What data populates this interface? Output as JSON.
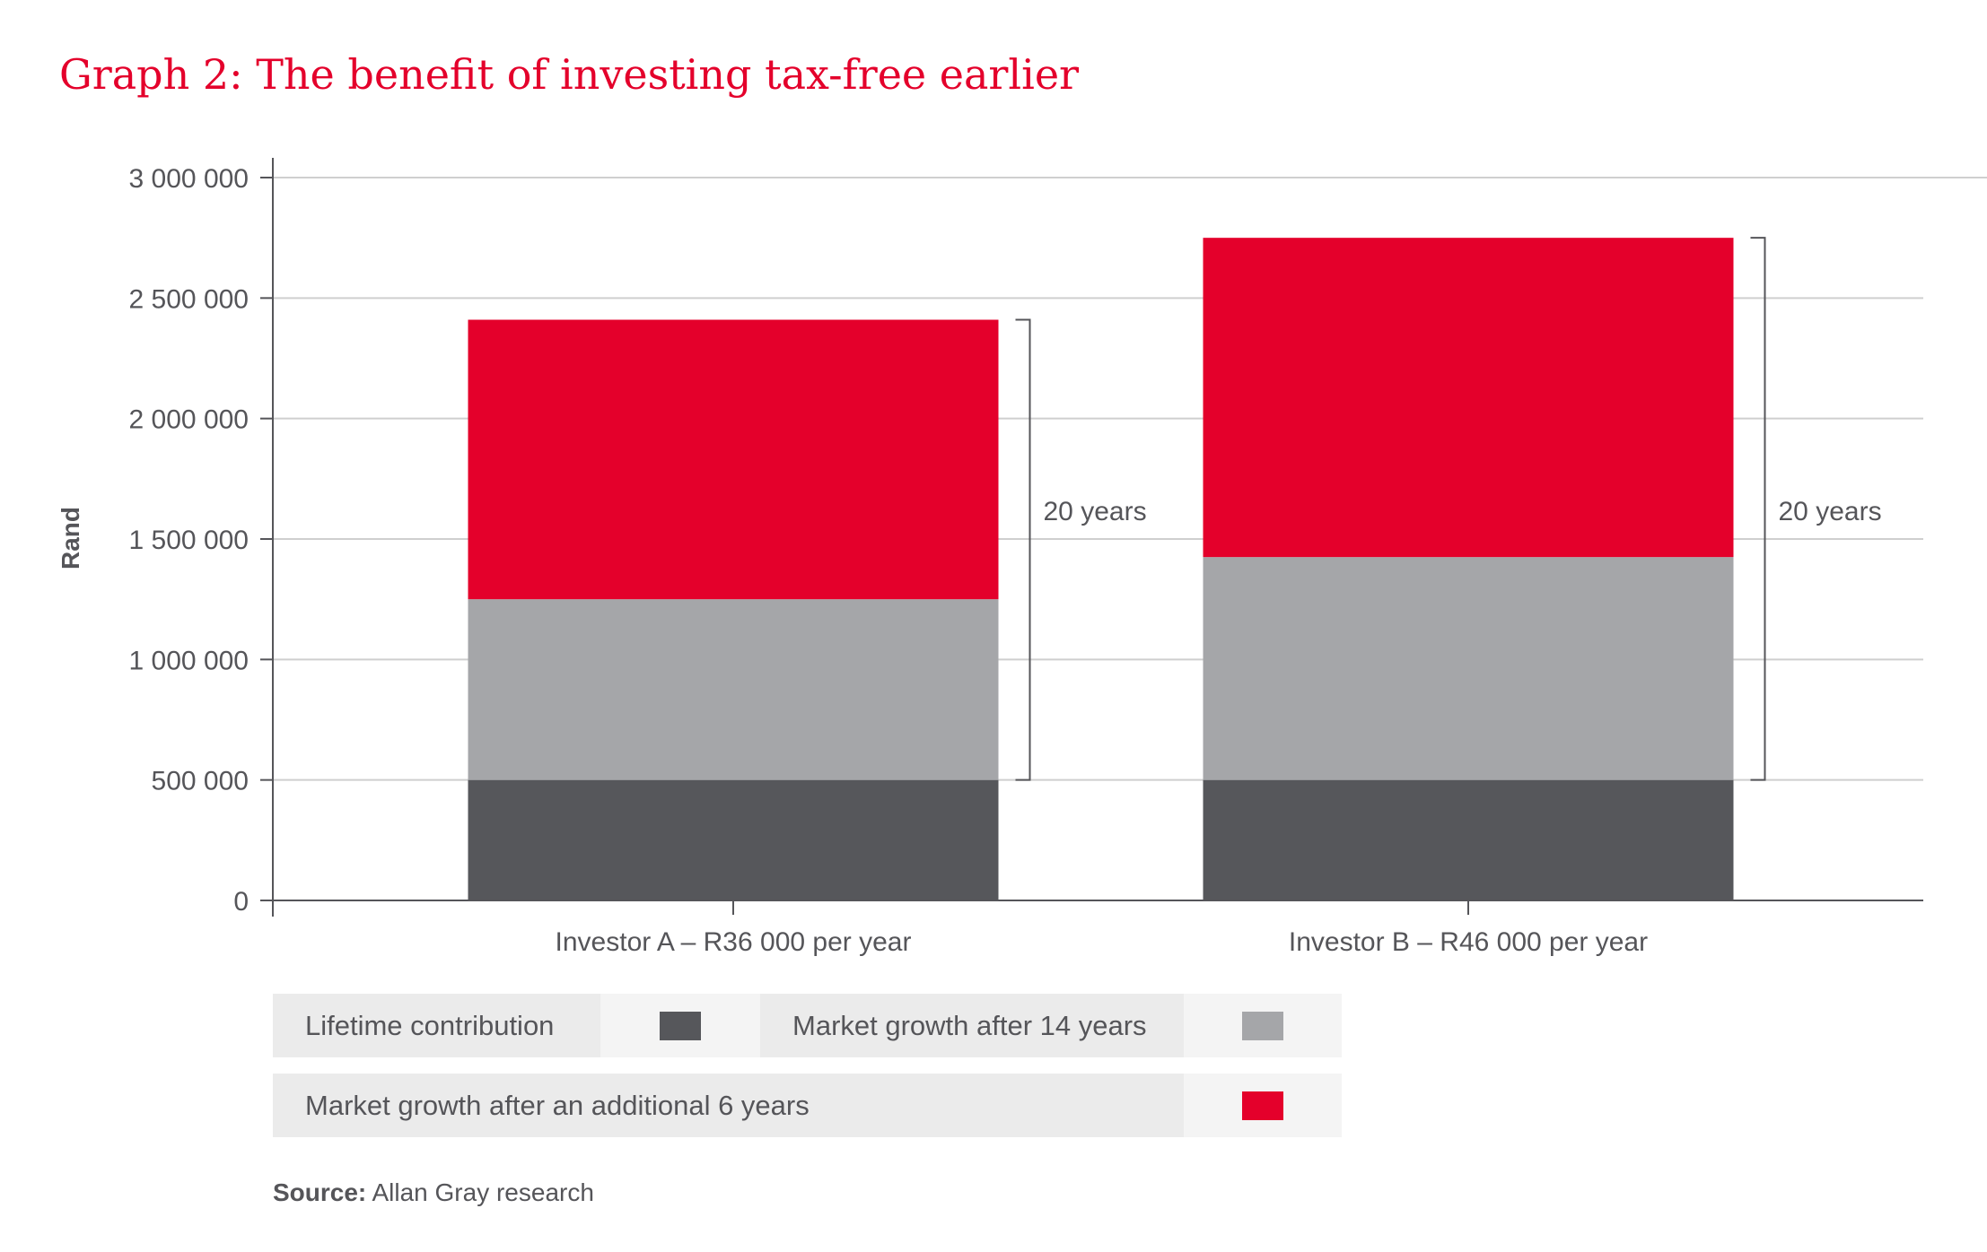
{
  "title": "Graph 2: The benefit of investing tax-free earlier",
  "chart_data": {
    "type": "bar",
    "stacked": true,
    "title": "Graph 2: The benefit of investing tax-free earlier",
    "ylabel": "Rand",
    "xlabel": "",
    "ylim": [
      0,
      3000000
    ],
    "yticks": [
      0,
      500000,
      1000000,
      1500000,
      2000000,
      2500000,
      3000000
    ],
    "ytick_labels": [
      "0",
      "500 000",
      "1 000 000",
      "1 500 000",
      "2 000 000",
      "2 500 000",
      "3 000 000"
    ],
    "grid": true,
    "categories": [
      "Investor A – R36 000 per year",
      "Investor B – R46 000 per year"
    ],
    "series": [
      {
        "name": "Lifetime contribution",
        "color": "#56575b",
        "values": [
          500000,
          500000
        ]
      },
      {
        "name": "Market growth after 14 years",
        "color": "#a5a6a9",
        "values": [
          750000,
          925000
        ]
      },
      {
        "name": "Market growth after an additional 6 years",
        "color": "#e4002b",
        "values": [
          1160000,
          1325000
        ]
      }
    ],
    "annotations": [
      "20 years",
      "20 years"
    ],
    "legend_placement": "bottom"
  },
  "source": {
    "label": "Source:",
    "text": " Allan Gray research"
  }
}
